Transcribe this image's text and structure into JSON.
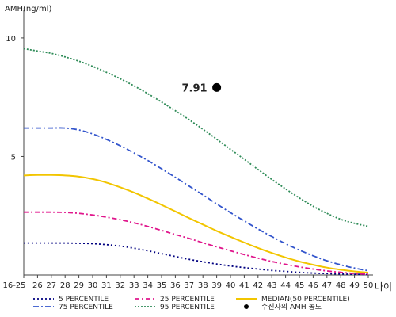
{
  "chart_data": {
    "type": "line",
    "ylabel": "AMH(ng/ml)",
    "xlabel": "나이",
    "x": [
      "16-25",
      "26",
      "27",
      "28",
      "29",
      "30",
      "31",
      "32",
      "33",
      "34",
      "35",
      "36",
      "37",
      "38",
      "39",
      "40",
      "41",
      "42",
      "43",
      "44",
      "45",
      "46",
      "47",
      "48",
      "49",
      "50"
    ],
    "ylim": [
      0,
      11
    ],
    "yticks": [
      5,
      10
    ],
    "series": [
      {
        "name": "5 PERCENTILE",
        "color": "#000080",
        "dash": "2,3",
        "values": [
          1.35,
          1.35,
          1.35,
          1.35,
          1.34,
          1.32,
          1.28,
          1.22,
          1.13,
          1.02,
          0.9,
          0.78,
          0.66,
          0.56,
          0.46,
          0.38,
          0.31,
          0.25,
          0.19,
          0.15,
          0.11,
          0.08,
          0.06,
          0.04,
          0.03,
          0.02
        ]
      },
      {
        "name": "25 PERCENTILE",
        "color": "#e0168c",
        "dash": "6,3,2,3",
        "values": [
          2.65,
          2.65,
          2.65,
          2.64,
          2.6,
          2.53,
          2.44,
          2.33,
          2.2,
          2.05,
          1.88,
          1.71,
          1.54,
          1.36,
          1.19,
          1.02,
          0.86,
          0.71,
          0.57,
          0.45,
          0.34,
          0.25,
          0.17,
          0.11,
          0.06,
          0.03
        ]
      },
      {
        "name": "MEDIAN(50 PERCENTILE)",
        "color": "#f2c500",
        "dash": "",
        "values": [
          4.2,
          4.22,
          4.22,
          4.2,
          4.15,
          4.05,
          3.9,
          3.7,
          3.48,
          3.23,
          2.96,
          2.68,
          2.4,
          2.13,
          1.86,
          1.61,
          1.37,
          1.14,
          0.93,
          0.74,
          0.57,
          0.43,
          0.31,
          0.22,
          0.15,
          0.1
        ]
      },
      {
        "name": "75 PERCENTILE",
        "color": "#3355cc",
        "dash": "7,3,2,3",
        "values": [
          6.2,
          6.2,
          6.2,
          6.2,
          6.12,
          5.95,
          5.72,
          5.45,
          5.15,
          4.83,
          4.48,
          4.12,
          3.75,
          3.38,
          3.0,
          2.63,
          2.28,
          1.94,
          1.62,
          1.32,
          1.05,
          0.81,
          0.6,
          0.43,
          0.29,
          0.18
        ]
      },
      {
        "name": "95 PERCENTILE",
        "color": "#2e8b57",
        "dash": "2,2",
        "values": [
          9.55,
          9.45,
          9.35,
          9.2,
          9.02,
          8.8,
          8.55,
          8.28,
          7.98,
          7.65,
          7.3,
          6.93,
          6.55,
          6.15,
          5.73,
          5.3,
          4.88,
          4.45,
          4.03,
          3.63,
          3.25,
          2.9,
          2.6,
          2.35,
          2.18,
          2.05
        ]
      }
    ],
    "points": [
      {
        "name": "수진자의 AMH 농도",
        "x": "39",
        "y": 7.91,
        "label": "7.91"
      }
    ],
    "legend": {
      "position": "bottom"
    }
  }
}
